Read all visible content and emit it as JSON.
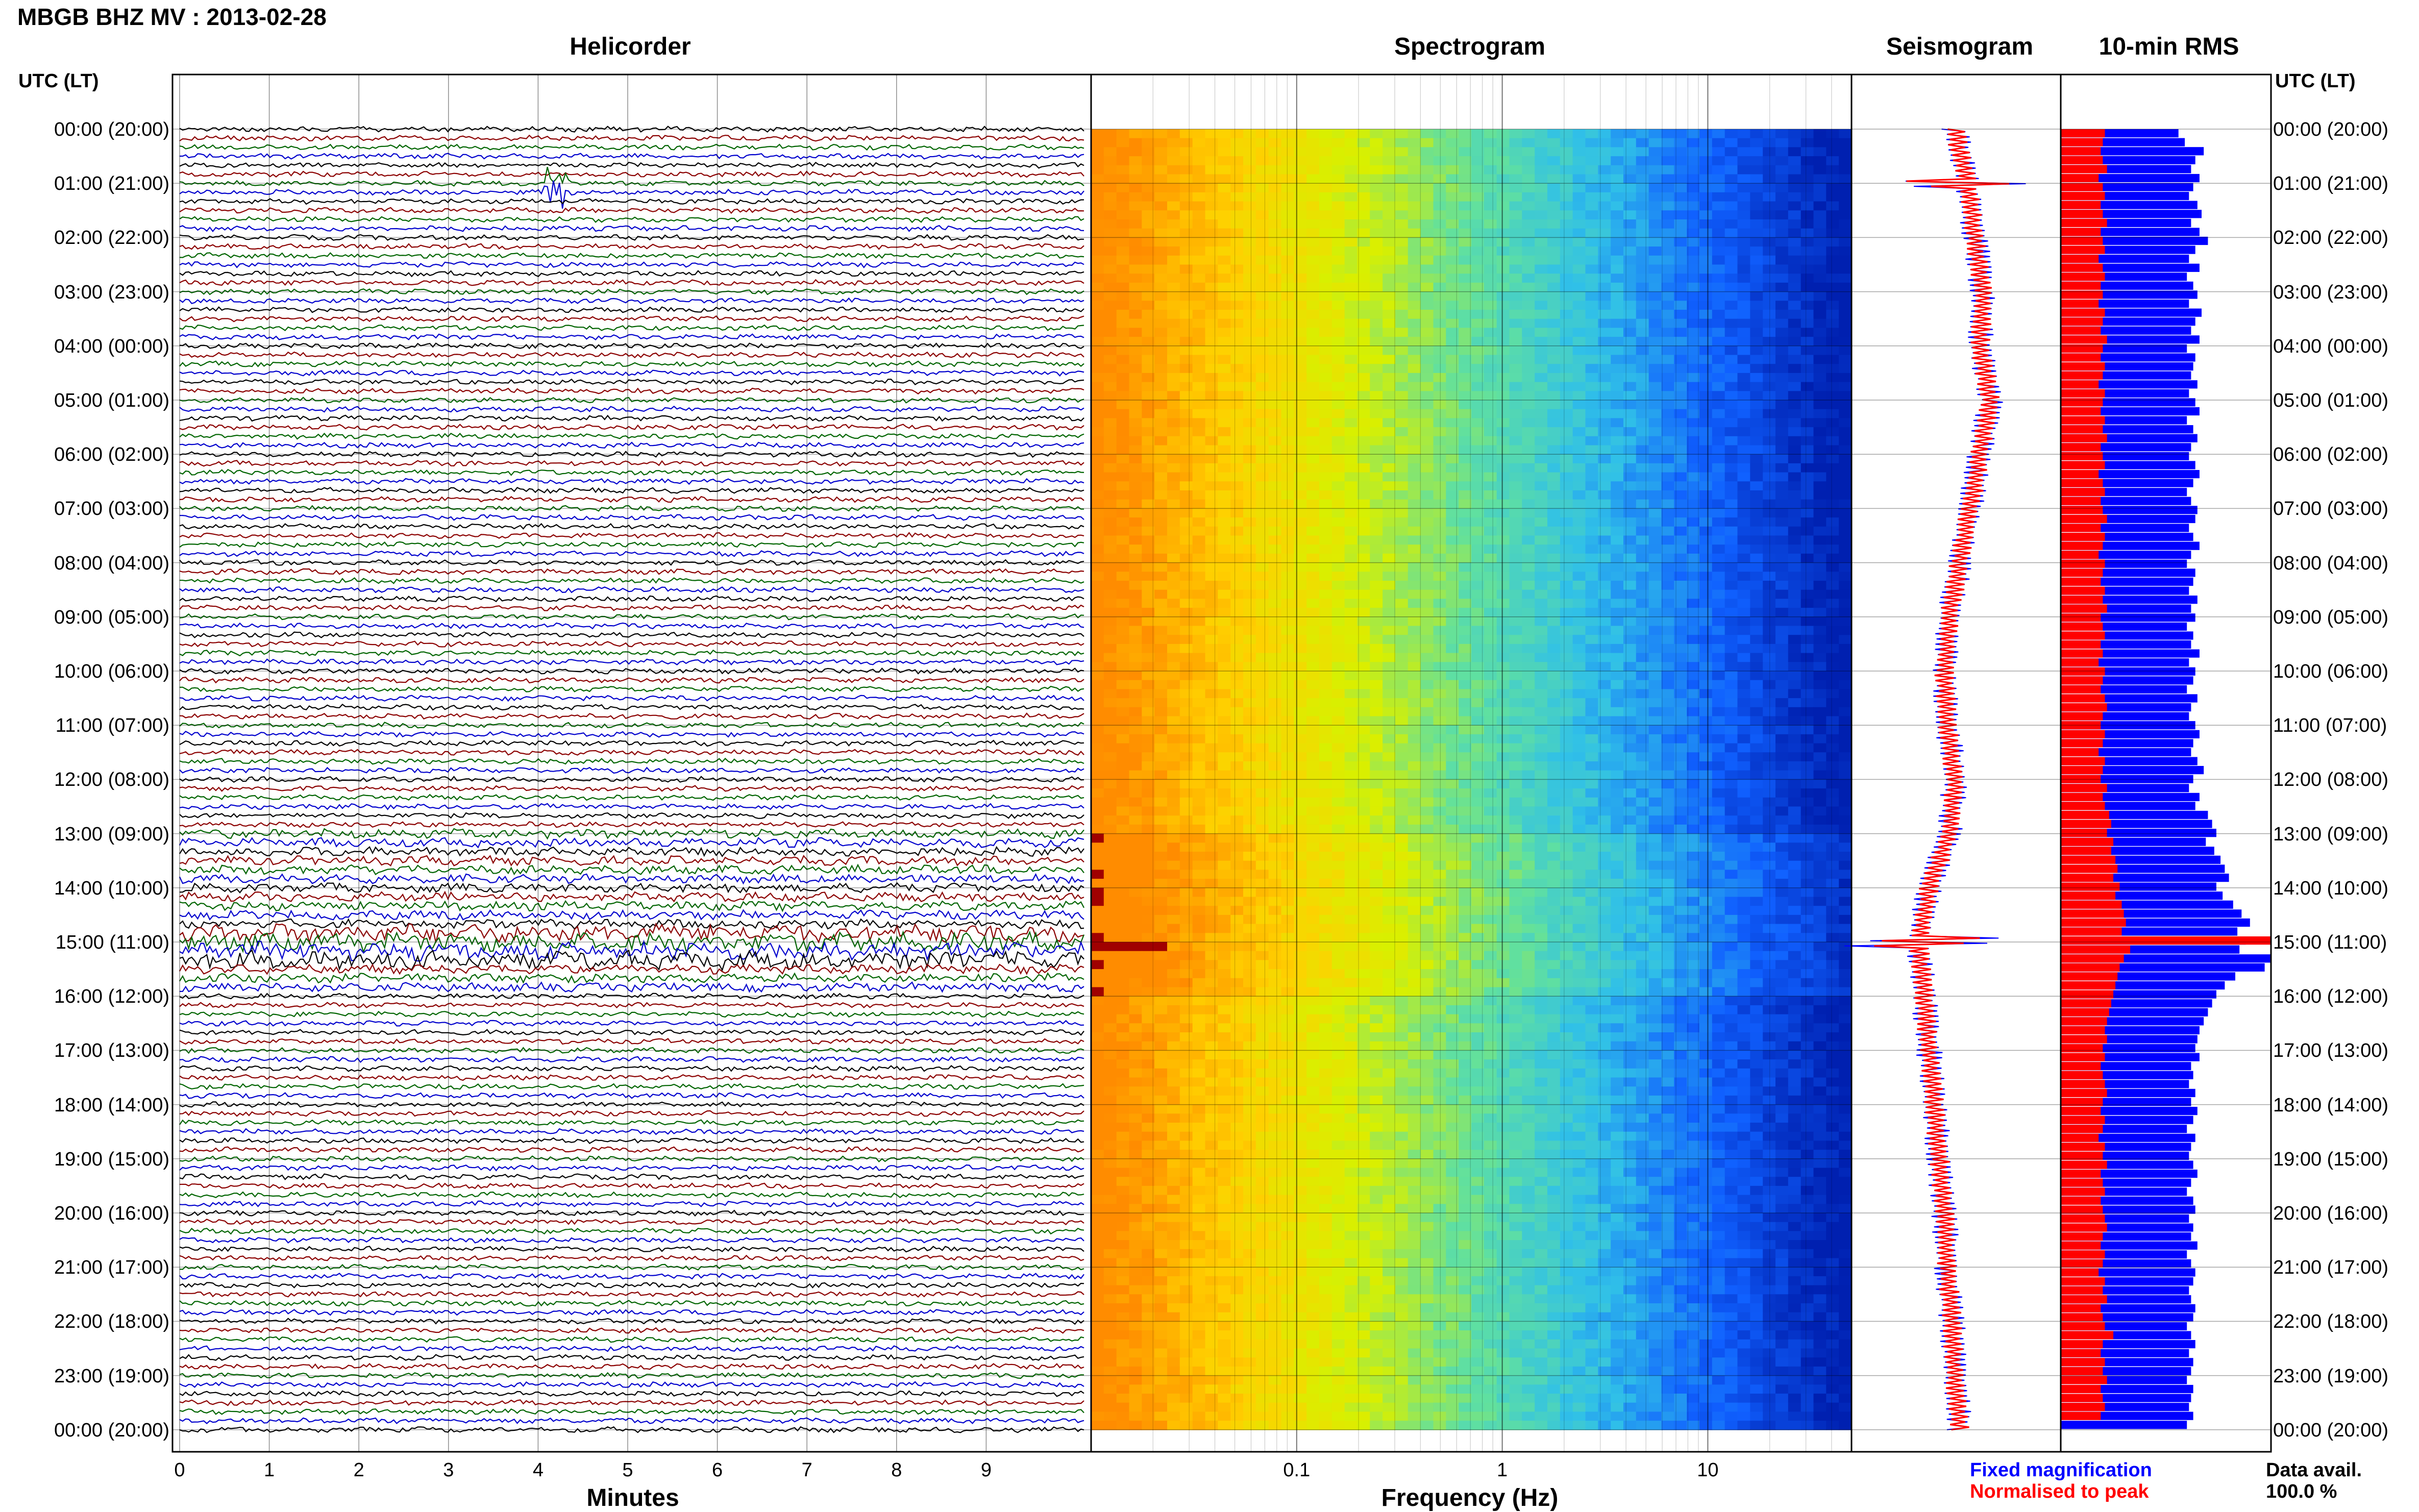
{
  "title": "MBGB BHZ MV : 2013-02-28",
  "panels": {
    "helicorder": "Helicorder",
    "spectrogram": "Spectrogram",
    "seismogram": "Seismogram",
    "rms": "10-min RMS"
  },
  "utc_header": "UTC (LT)",
  "time_labels": [
    "00:00 (20:00)",
    "01:00 (21:00)",
    "02:00 (22:00)",
    "03:00 (23:00)",
    "04:00 (00:00)",
    "05:00 (01:00)",
    "06:00 (02:00)",
    "07:00 (03:00)",
    "08:00 (04:00)",
    "09:00 (05:00)",
    "10:00 (06:00)",
    "11:00 (07:00)",
    "12:00 (08:00)",
    "13:00 (09:00)",
    "14:00 (10:00)",
    "15:00 (11:00)",
    "16:00 (12:00)",
    "17:00 (13:00)",
    "18:00 (14:00)",
    "19:00 (15:00)",
    "20:00 (16:00)",
    "21:00 (17:00)",
    "22:00 (18:00)",
    "23:00 (19:00)",
    "00:00 (20:00)"
  ],
  "helicorder_xaxis": {
    "label": "Minutes",
    "ticks": [
      "0",
      "1",
      "2",
      "3",
      "4",
      "5",
      "6",
      "7",
      "8",
      "9"
    ]
  },
  "spectrogram_xaxis": {
    "label": "Frequency (Hz)",
    "ticks": [
      "0.1",
      "1",
      "10"
    ],
    "scale": "log"
  },
  "legend": {
    "fixed": "Fixed magnification",
    "normalised": "Normalised to peak"
  },
  "data_avail": {
    "label": "Data avail.",
    "value": "100.0 %"
  },
  "colors": {
    "trace_cycle": [
      "#000000",
      "#8b0000",
      "#006400",
      "#0000cd"
    ],
    "fixed": "#0000ff",
    "normalised": "#ff0000"
  },
  "chart_data": [
    {
      "type": "line",
      "title": "Helicorder",
      "xlabel": "Minutes",
      "xlim": [
        0,
        10
      ],
      "ylabel": "UTC (LT)",
      "rows_per_hour": 6,
      "event_hours": [
        1.0,
        15.0
      ],
      "high_noise_hours": [
        13.0,
        14.0,
        15.0
      ]
    },
    {
      "type": "heatmap",
      "title": "Spectrogram",
      "xlabel": "Frequency (Hz)",
      "xscale": "log",
      "colormap": [
        "#ff8c00",
        "#ffd000",
        "#d8f000",
        "#60e0a0",
        "#30c0e8",
        "#1060ff",
        "#0020b0"
      ]
    },
    {
      "type": "area",
      "title": "Seismogram",
      "series": [
        {
          "name": "Fixed magnification"
        },
        {
          "name": "Normalised to peak"
        }
      ]
    },
    {
      "type": "bar",
      "title": "10-min RMS",
      "series": [
        {
          "name": "Fixed magnification",
          "values": [
            0.56,
            0.59,
            0.68,
            0.64,
            0.62,
            0.66,
            0.63,
            0.61,
            0.65,
            0.67,
            0.62,
            0.66,
            0.7,
            0.64,
            0.61,
            0.66,
            0.6,
            0.63,
            0.65,
            0.61,
            0.67,
            0.64,
            0.62,
            0.66,
            0.6,
            0.64,
            0.63,
            0.62,
            0.65,
            0.61,
            0.64,
            0.66,
            0.6,
            0.63,
            0.65,
            0.62,
            0.61,
            0.64,
            0.66,
            0.63,
            0.6,
            0.62,
            0.65,
            0.64,
            0.61,
            0.63,
            0.66,
            0.62,
            0.6,
            0.64,
            0.63,
            0.61,
            0.65,
            0.62,
            0.64,
            0.6,
            0.63,
            0.62,
            0.66,
            0.61,
            0.64,
            0.63,
            0.6,
            0.65,
            0.62,
            0.61,
            0.64,
            0.66,
            0.63,
            0.62,
            0.65,
            0.68,
            0.63,
            0.61,
            0.66,
            0.64,
            0.7,
            0.72,
            0.74,
            0.69,
            0.73,
            0.76,
            0.78,
            0.8,
            0.74,
            0.77,
            0.82,
            0.86,
            0.9,
            0.84,
            0.88,
            0.85,
            1.0,
            0.97,
            0.83,
            0.78,
            0.74,
            0.72,
            0.7,
            0.68,
            0.66,
            0.65,
            0.64,
            0.66,
            0.62,
            0.63,
            0.61,
            0.64,
            0.62,
            0.65,
            0.63,
            0.6,
            0.64,
            0.62,
            0.61,
            0.63,
            0.65,
            0.62,
            0.6,
            0.63,
            0.64,
            0.61,
            0.63,
            0.62,
            0.65,
            0.6,
            0.62,
            0.64,
            0.63,
            0.61,
            0.62,
            0.64,
            0.63,
            0.6,
            0.62,
            0.64,
            0.61,
            0.63,
            0.62,
            0.6,
            0.63,
            0.62,
            0.61,
            0.63,
            0.6
          ]
        },
        {
          "name": "Normalised to peak",
          "values": [
            0.21,
            0.2,
            0.19,
            0.2,
            0.22,
            0.18,
            0.2,
            0.21,
            0.19,
            0.2,
            0.22,
            0.19,
            0.2,
            0.21,
            0.18,
            0.2,
            0.21,
            0.19,
            0.2,
            0.18,
            0.21,
            0.2,
            0.19,
            0.22,
            0.2,
            0.19,
            0.21,
            0.2,
            0.18,
            0.21,
            0.2,
            0.19,
            0.21,
            0.2,
            0.22,
            0.19,
            0.2,
            0.21,
            0.18,
            0.2,
            0.21,
            0.19,
            0.2,
            0.22,
            0.19,
            0.21,
            0.2,
            0.18,
            0.21,
            0.2,
            0.19,
            0.21,
            0.2,
            0.22,
            0.19,
            0.2,
            0.21,
            0.19,
            0.2,
            0.18,
            0.21,
            0.2,
            0.19,
            0.21,
            0.22,
            0.2,
            0.19,
            0.21,
            0.2,
            0.18,
            0.21,
            0.2,
            0.19,
            0.22,
            0.2,
            0.21,
            0.23,
            0.24,
            0.22,
            0.25,
            0.24,
            0.26,
            0.27,
            0.25,
            0.28,
            0.26,
            0.29,
            0.3,
            0.31,
            0.29,
            1.0,
            0.33,
            0.3,
            0.28,
            0.27,
            0.26,
            0.25,
            0.24,
            0.23,
            0.22,
            0.21,
            0.22,
            0.2,
            0.21,
            0.19,
            0.2,
            0.21,
            0.22,
            0.2,
            0.19,
            0.21,
            0.2,
            0.18,
            0.21,
            0.2,
            0.22,
            0.19,
            0.2,
            0.21,
            0.19,
            0.2,
            0.21,
            0.22,
            0.2,
            0.19,
            0.21,
            0.2,
            0.18,
            0.21,
            0.2,
            0.22,
            0.19,
            0.2,
            0.21,
            0.25,
            0.2,
            0.19,
            0.21,
            0.2,
            0.22,
            0.19,
            0.2,
            0.21,
            0.19
          ]
        }
      ]
    }
  ]
}
